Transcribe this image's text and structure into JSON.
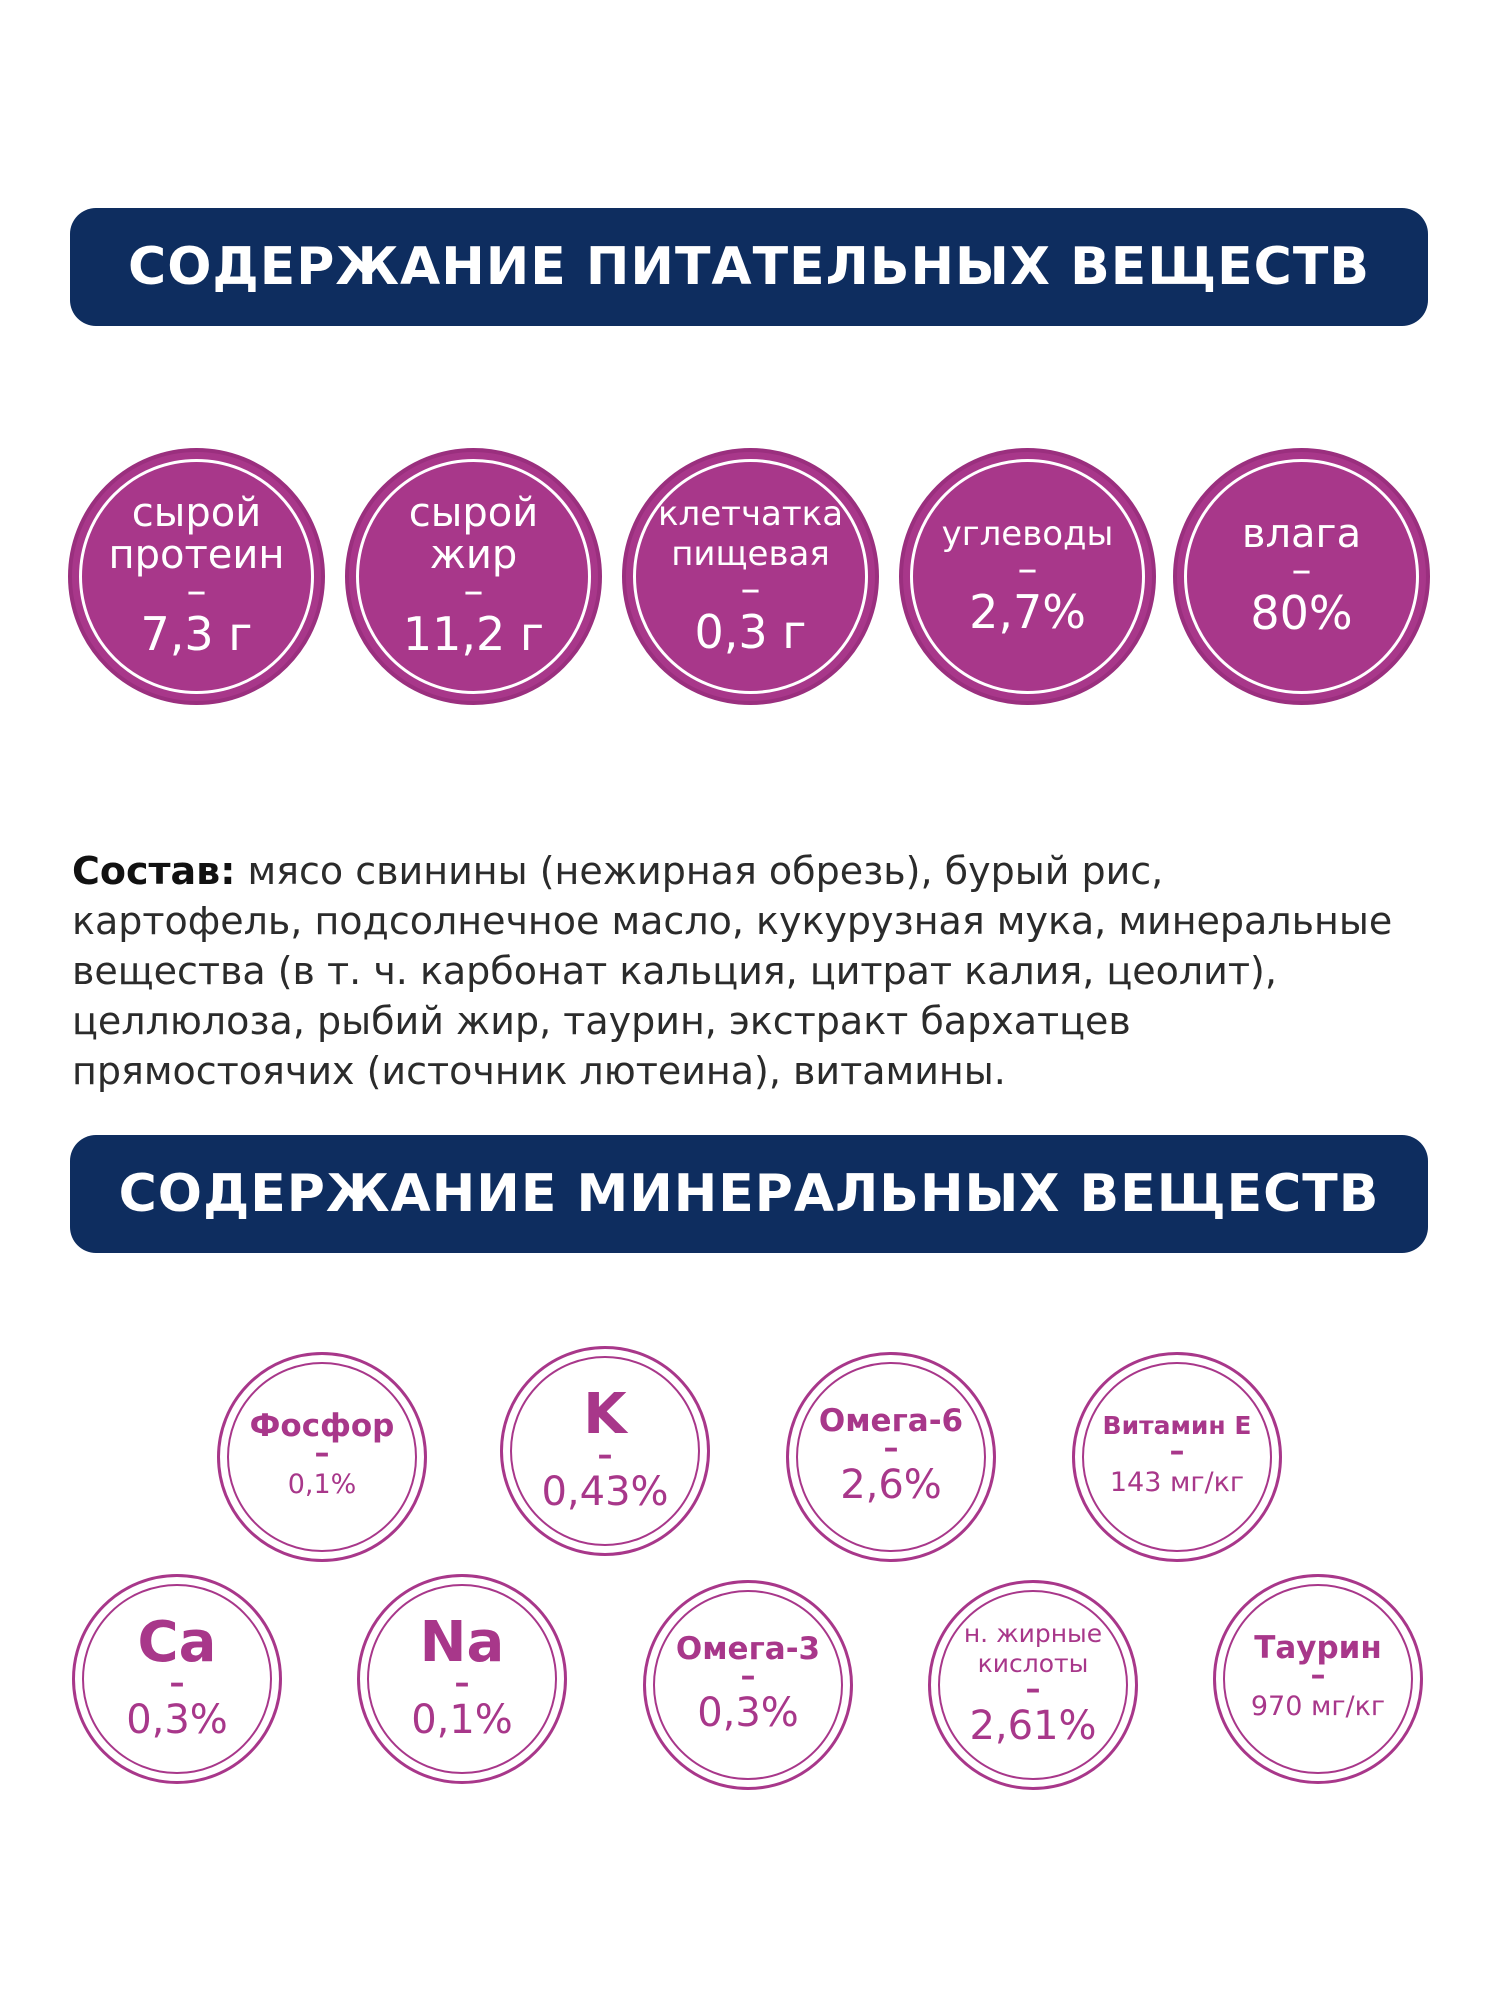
{
  "nutrients_title": "СОДЕРЖАНИЕ ПИТАТЕЛЬНЫХ ВЕЩЕСТВ",
  "nutrients": [
    {
      "label": "сырой\nпротеин",
      "dash": "–",
      "value": "7,3 г"
    },
    {
      "label": "сырой\nжир",
      "dash": "–",
      "value": "11,2 г"
    },
    {
      "label": "клетчатка\nпищевая",
      "dash": "–",
      "value": "0,3 г"
    },
    {
      "label": "углеводы",
      "dash": "–",
      "value": "2,7%"
    },
    {
      "label": "влага",
      "dash": "–",
      "value": "80%"
    }
  ],
  "composition": {
    "heading": "Состав:",
    "text": " мясо свинины (нежирная обрезь), бурый рис, картофель, подсолнечное масло, кукурузная мука, минеральные вещества (в т. ч. карбонат кальция, цитрат калия, цеолит), целлюлоза, рыбий жир, таурин, экстракт бархатцев прямостоячих (источник лютеина), витамины."
  },
  "minerals_title": "СОДЕРЖАНИЕ МИНЕРАЛЬНЫХ ВЕЩЕСТВ",
  "minerals": [
    {
      "label": "Фосфор",
      "dash": "–",
      "value": "0,1%"
    },
    {
      "label": "K",
      "dash": "–",
      "value": "0,43%"
    },
    {
      "label": "Омега-6",
      "dash": "–",
      "value": "2,6%"
    },
    {
      "label": "Витамин Е",
      "dash": "–",
      "value": "143 мг/кг"
    },
    {
      "label": "Ca",
      "dash": "–",
      "value": "0,3%"
    },
    {
      "label": "Na",
      "dash": "–",
      "value": "0,1%"
    },
    {
      "label": "Омега-3",
      "dash": "–",
      "value": "0,3%"
    },
    {
      "label": "н. жирные\nкислоты",
      "dash": "–",
      "value": "2,61%"
    },
    {
      "label": "Таурин",
      "dash": "–",
      "value": "970 мг/кг"
    }
  ],
  "colors": {
    "banner": "#0e2d5f",
    "accent": "#a8378a",
    "text": "#2b2b2b"
  }
}
